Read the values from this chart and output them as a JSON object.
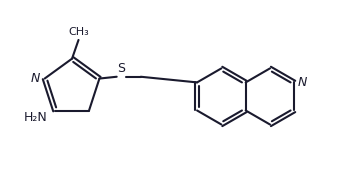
{
  "background_color": "#ffffff",
  "line_color": "#1a1a2e",
  "text_color": "#1a1a2e",
  "line_width": 1.5,
  "font_size": 9,
  "figsize": [
    3.6,
    1.81
  ],
  "dpi": 100,
  "xlim": [
    0,
    10
  ],
  "ylim": [
    0,
    5.03
  ]
}
